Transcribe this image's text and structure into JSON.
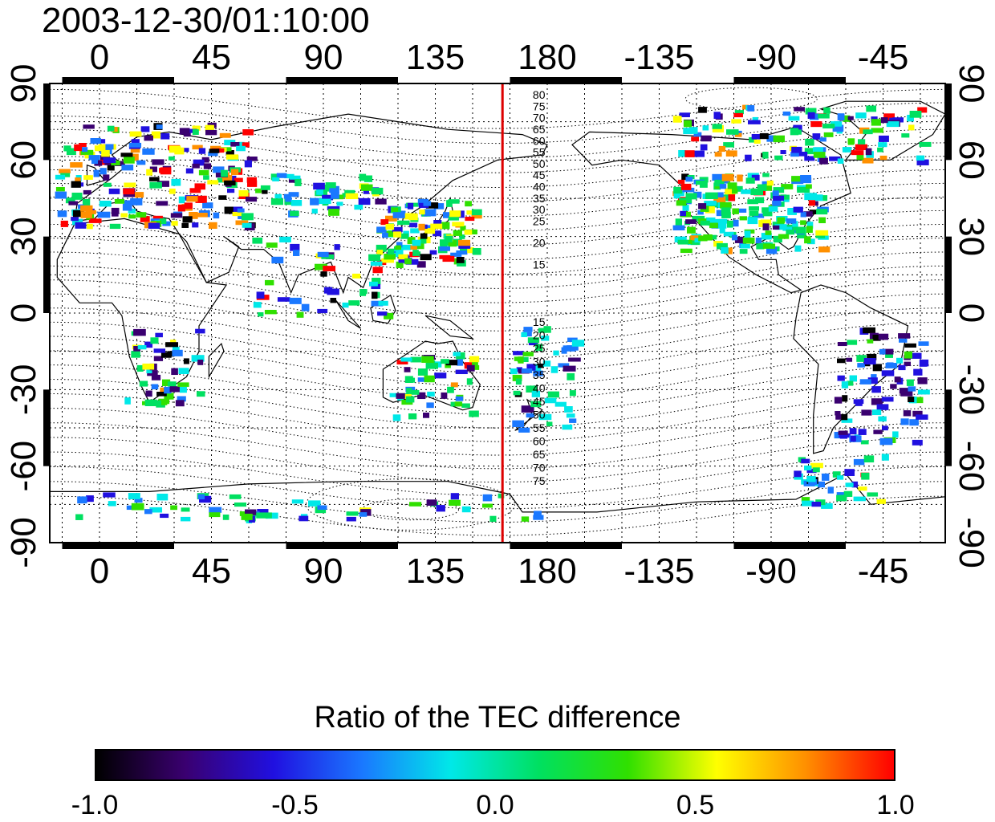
{
  "title": "2003-12-30/01:10:00",
  "map": {
    "x_tick_labels": [
      "0",
      "45",
      "90",
      "135",
      "180",
      "-135",
      "-90",
      "-45"
    ],
    "x_tick_lons": [
      0,
      45,
      90,
      135,
      180,
      225,
      270,
      315
    ],
    "y_tick_labels": [
      "90",
      "60",
      "30",
      "0",
      "-30",
      "-60",
      "-90"
    ],
    "y_tick_lats": [
      90,
      60,
      30,
      0,
      -30,
      -60,
      -90
    ],
    "lon_range": [
      -20,
      340
    ],
    "lat_range": [
      -90,
      90
    ],
    "grid": true,
    "terminator_lon": 162,
    "terminator_color": "#dd0000",
    "contour_labels_north": [
      "80",
      "75",
      "70",
      "65",
      "60",
      "55",
      "50",
      "45",
      "40",
      "35",
      "30",
      "25",
      "20",
      "15"
    ],
    "contour_labels_south": [
      "15",
      "20",
      "25",
      "30",
      "35",
      "40",
      "45",
      "50",
      "55",
      "60",
      "65",
      "70",
      "75"
    ]
  },
  "colorbar": {
    "title": "Ratio of the TEC difference",
    "ticks": [
      "-1.0",
      "-0.5",
      "0.0",
      "0.5",
      "1.0"
    ],
    "range": [
      -1.0,
      1.0
    ],
    "colors": [
      "#000000",
      "#3a0070",
      "#2010e0",
      "#1a78ff",
      "#00e8e8",
      "#00e060",
      "#30e000",
      "#ffff00",
      "#ff9000",
      "#ff0000"
    ]
  }
}
